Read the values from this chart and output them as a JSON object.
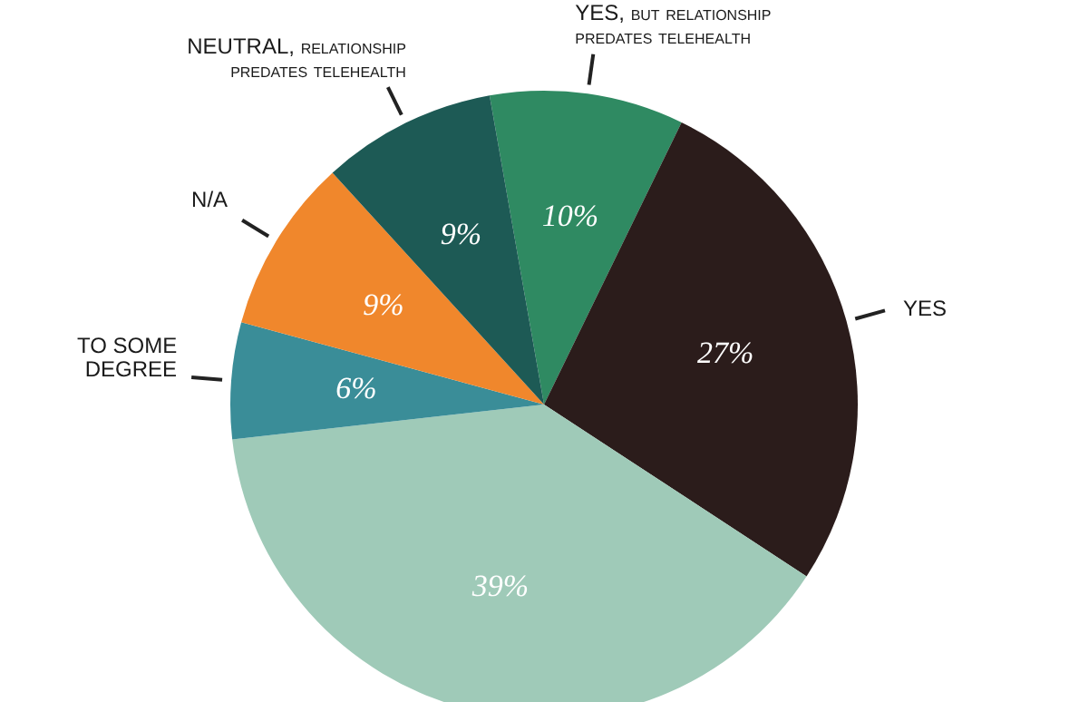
{
  "chart_data": {
    "type": "pie",
    "categories": [
      "YES, but relationship predates telehealth",
      "YES",
      null,
      "TO SOME DEGREE",
      "N/A",
      "NEUTRAL, relationship predates telehealth"
    ],
    "values": [
      10,
      27,
      39,
      6,
      9,
      9
    ],
    "colors": [
      "#2f8a62",
      "#2b1c1b",
      "#9fcab8",
      "#3a8d98",
      "#f0872c",
      "#1d5a55"
    ],
    "value_labels": [
      "10%",
      "27%",
      "39%",
      "6%",
      "9%",
      "9%"
    ],
    "legend": false
  }
}
